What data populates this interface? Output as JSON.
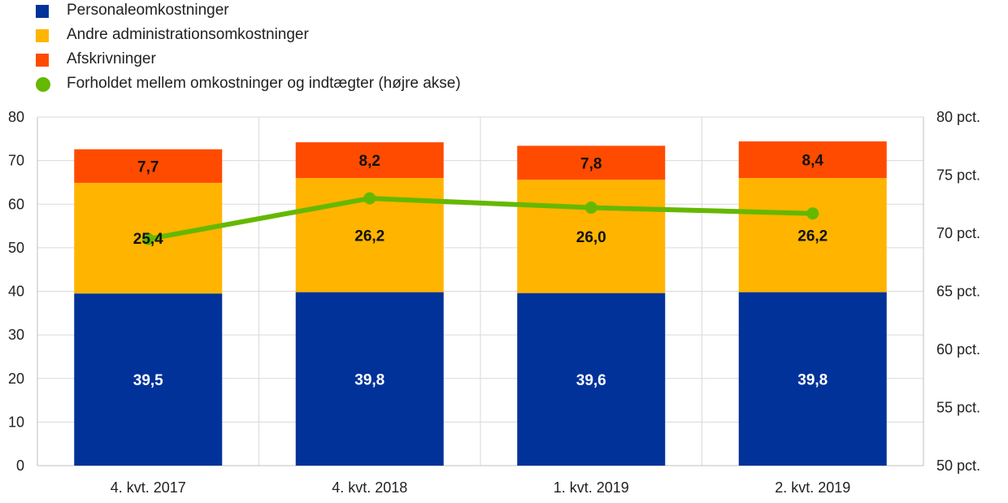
{
  "chart_data": {
    "type": "bar",
    "stacked": true,
    "categories": [
      "4. kvt. 2017",
      "4. kvt. 2018",
      "1. kvt. 2019",
      "2. kvt. 2019"
    ],
    "series": [
      {
        "name": "Personaleomkostninger",
        "color": "#003299",
        "label_color": "#ffffff",
        "values": [
          39.5,
          39.8,
          39.6,
          39.8
        ],
        "labels": [
          "39,5",
          "39,8",
          "39,6",
          "39,8"
        ]
      },
      {
        "name": "Andre administrationsomkostninger",
        "color": "#FFB400",
        "label_color": "#111111",
        "values": [
          25.4,
          26.2,
          26.0,
          26.2
        ],
        "labels": [
          "25,4",
          "26,2",
          "26,0",
          "26,2"
        ]
      },
      {
        "name": "Afskrivninger",
        "color": "#FF4B00",
        "label_color": "#111111",
        "values": [
          7.7,
          8.2,
          7.8,
          8.4
        ],
        "labels": [
          "7,7",
          "8,2",
          "7,8",
          "8,4"
        ]
      }
    ],
    "line_series": {
      "name": "Forholdet mellem omkostninger og indtægter (højre akse)",
      "axis": "right",
      "color": "#65B800",
      "values": [
        69.5,
        73.0,
        72.2,
        71.7
      ]
    },
    "left_axis": {
      "min": 0,
      "max": 80,
      "ticks": [
        "0",
        "10",
        "20",
        "30",
        "40",
        "50",
        "60",
        "70",
        "80"
      ]
    },
    "right_axis": {
      "min": 50,
      "max": 80,
      "ticks": [
        "50 pct.",
        "55 pct.",
        "60 pct.",
        "65 pct.",
        "70 pct.",
        "75 pct.",
        "80 pct."
      ]
    },
    "legend_position": "top-left",
    "grid": true
  }
}
